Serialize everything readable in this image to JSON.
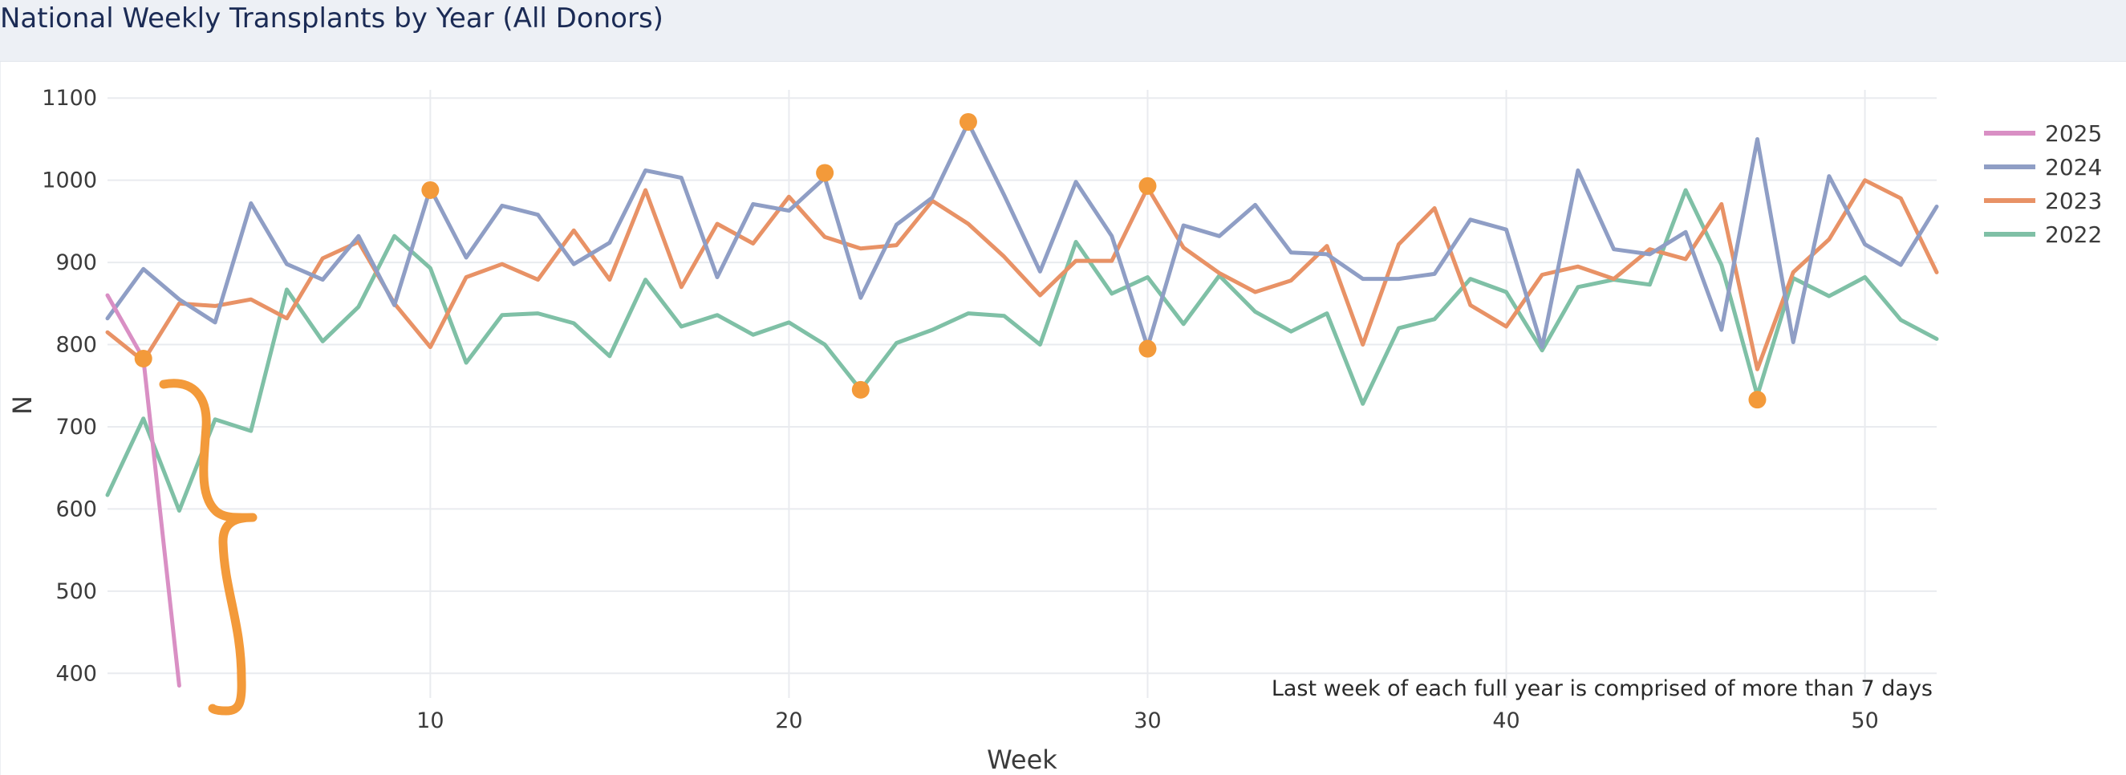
{
  "page_title": "National Weekly Transplants by Year (All Donors)",
  "chart_data": {
    "type": "line",
    "title": "",
    "xlabel": "Week",
    "ylabel": "N",
    "annotation": "Last week of each full year is comprised of more than 7 days",
    "xlim": [
      1,
      52
    ],
    "ylim": [
      370,
      1110
    ],
    "x_ticks": [
      10,
      20,
      30,
      40,
      50
    ],
    "y_ticks": [
      400,
      500,
      600,
      700,
      800,
      900,
      1000,
      1100
    ],
    "grid": true,
    "legend_position": "top-right",
    "series": [
      {
        "name": "2025",
        "color": "#d98fc4",
        "x": [
          1,
          2,
          3
        ],
        "values": [
          860,
          783,
          385
        ]
      },
      {
        "name": "2024",
        "color": "#8f9ec5",
        "x": [
          1,
          2,
          3,
          4,
          5,
          6,
          7,
          8,
          9,
          10,
          11,
          12,
          13,
          14,
          15,
          16,
          17,
          18,
          19,
          20,
          21,
          22,
          23,
          24,
          25,
          26,
          27,
          28,
          29,
          30,
          31,
          32,
          33,
          34,
          35,
          36,
          37,
          38,
          39,
          40,
          41,
          42,
          43,
          44,
          45,
          46,
          47,
          48,
          49,
          50,
          51,
          52
        ],
        "values": [
          832,
          892,
          855,
          827,
          972,
          898,
          879,
          932,
          848,
          990,
          906,
          969,
          958,
          898,
          924,
          1012,
          1003,
          882,
          971,
          963,
          1003,
          857,
          946,
          979,
          1070,
          982,
          889,
          998,
          932,
          797,
          945,
          932,
          970,
          912,
          910,
          880,
          880,
          886,
          952,
          940,
          797,
          1012,
          916,
          910,
          937,
          818,
          1050,
          803,
          1005,
          922,
          897,
          968
        ]
      },
      {
        "name": "2023",
        "color": "#e89266",
        "x": [
          1,
          2,
          3,
          4,
          5,
          6,
          7,
          8,
          9,
          10,
          11,
          12,
          13,
          14,
          15,
          16,
          17,
          18,
          19,
          20,
          21,
          22,
          23,
          24,
          25,
          26,
          27,
          28,
          29,
          30,
          31,
          32,
          33,
          34,
          35,
          36,
          37,
          38,
          39,
          40,
          41,
          42,
          43,
          44,
          45,
          46,
          47,
          48,
          49,
          50,
          51,
          52
        ],
        "values": [
          815,
          780,
          850,
          847,
          855,
          832,
          905,
          925,
          850,
          797,
          882,
          898,
          879,
          939,
          879,
          988,
          870,
          947,
          923,
          980,
          931,
          917,
          921,
          975,
          947,
          907,
          860,
          902,
          902,
          991,
          918,
          887,
          864,
          878,
          920,
          800,
          922,
          966,
          848,
          822,
          885,
          895,
          880,
          916,
          904,
          971,
          770,
          888,
          928,
          1000,
          978,
          888
        ]
      },
      {
        "name": "2022",
        "color": "#7fc0a6",
        "x": [
          1,
          2,
          3,
          4,
          5,
          6,
          7,
          8,
          9,
          10,
          11,
          12,
          13,
          14,
          15,
          16,
          17,
          18,
          19,
          20,
          21,
          22,
          23,
          24,
          25,
          26,
          27,
          28,
          29,
          30,
          31,
          32,
          33,
          34,
          35,
          36,
          37,
          38,
          39,
          40,
          41,
          42,
          43,
          44,
          45,
          46,
          47,
          48,
          49,
          50,
          51,
          52
        ],
        "values": [
          617,
          710,
          598,
          709,
          695,
          867,
          804,
          846,
          932,
          893,
          778,
          836,
          838,
          826,
          786,
          879,
          822,
          836,
          812,
          827,
          800,
          745,
          802,
          818,
          838,
          835,
          800,
          925,
          862,
          882,
          825,
          884,
          840,
          816,
          838,
          728,
          820,
          831,
          880,
          864,
          793,
          870,
          879,
          873,
          988,
          897,
          738,
          881,
          859,
          882,
          830,
          807
        ]
      }
    ],
    "highlight_points": [
      {
        "x": 2,
        "y": 783
      },
      {
        "x": 10,
        "y": 988
      },
      {
        "x": 21,
        "y": 1009
      },
      {
        "x": 22,
        "y": 745
      },
      {
        "x": 25,
        "y": 1071
      },
      {
        "x": 30,
        "y": 993
      },
      {
        "x": 30,
        "y": 795
      },
      {
        "x": 47,
        "y": 733
      }
    ],
    "highlight_color": "#f39a3a"
  }
}
